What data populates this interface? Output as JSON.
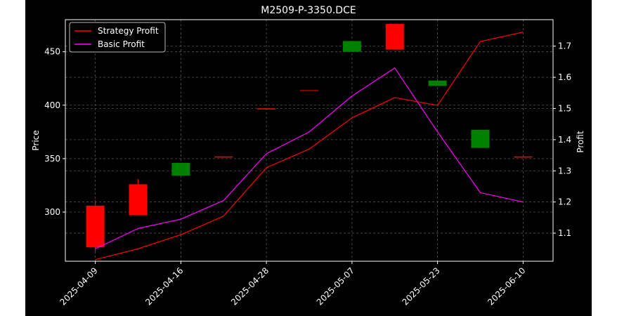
{
  "colors": {
    "figure_bg": "#000000",
    "outer_bg": "#ffffff",
    "axes_edge": "#ffffff",
    "text": "#ffffff",
    "grid": "#555555",
    "up_candle": "#008000",
    "down_candle": "#ff0000",
    "strategy_line": "#ff0000",
    "basic_line": "#ff00ff"
  },
  "chart_data": {
    "type": "candlestick-with-lines",
    "title": "M2509-P-3350.DCE",
    "ylabel_left": "Price",
    "ylabel_right": "Profit",
    "xlabel": "",
    "grid": true,
    "legend_position": "top-left",
    "x_tick_labels": [
      "2025-04-09",
      "2025-04-16",
      "2025-04-28",
      "2025-05-07",
      "2025-05-23",
      "2025-06-10"
    ],
    "x_tick_indices": [
      0,
      2,
      4,
      6,
      8,
      10
    ],
    "x_index_range": [
      -0.7,
      10.7
    ],
    "ylim_left": [
      254,
      480
    ],
    "yticks_left": [
      300,
      350,
      400,
      450
    ],
    "ylim_right": [
      1.01,
      1.785
    ],
    "yticks_right": [
      1.1,
      1.2,
      1.3,
      1.4,
      1.5,
      1.6,
      1.7
    ],
    "candles": [
      {
        "index": 0,
        "open": 306,
        "close": 267,
        "high": 311,
        "low": 263
      },
      {
        "index": 1,
        "open": 326,
        "close": 297,
        "high": 331,
        "low": 297
      },
      {
        "index": 2,
        "open": 334,
        "close": 346,
        "high": 346,
        "low": 334
      },
      {
        "index": 3,
        "open": 352,
        "close": 351,
        "high": 352,
        "low": 351
      },
      {
        "index": 4,
        "open": 397,
        "close": 396,
        "high": 397,
        "low": 396
      },
      {
        "index": 5,
        "open": 414,
        "close": 413.5,
        "high": 414,
        "low": 413.5
      },
      {
        "index": 6,
        "open": 450,
        "close": 460,
        "high": 460,
        "low": 450
      },
      {
        "index": 7,
        "open": 476,
        "close": 452,
        "high": 476,
        "low": 452
      },
      {
        "index": 8,
        "open": 418,
        "close": 423,
        "high": 423,
        "low": 418
      },
      {
        "index": 9,
        "open": 360,
        "close": 377,
        "high": 377,
        "low": 360
      },
      {
        "index": 10,
        "open": 352,
        "close": 351,
        "high": 352,
        "low": 351
      }
    ],
    "series": [
      {
        "name": "Strategy Profit",
        "axis": "right",
        "color": "#ff0000",
        "values": [
          1.015,
          1.05,
          1.095,
          1.155,
          1.31,
          1.37,
          1.47,
          1.535,
          1.51,
          1.715,
          1.745
        ]
      },
      {
        "name": "Basic Profit",
        "axis": "right",
        "color": "#ff00ff",
        "values": [
          1.05,
          1.115,
          1.145,
          1.205,
          1.355,
          1.425,
          1.54,
          1.63,
          1.425,
          1.23,
          1.2
        ]
      }
    ]
  }
}
